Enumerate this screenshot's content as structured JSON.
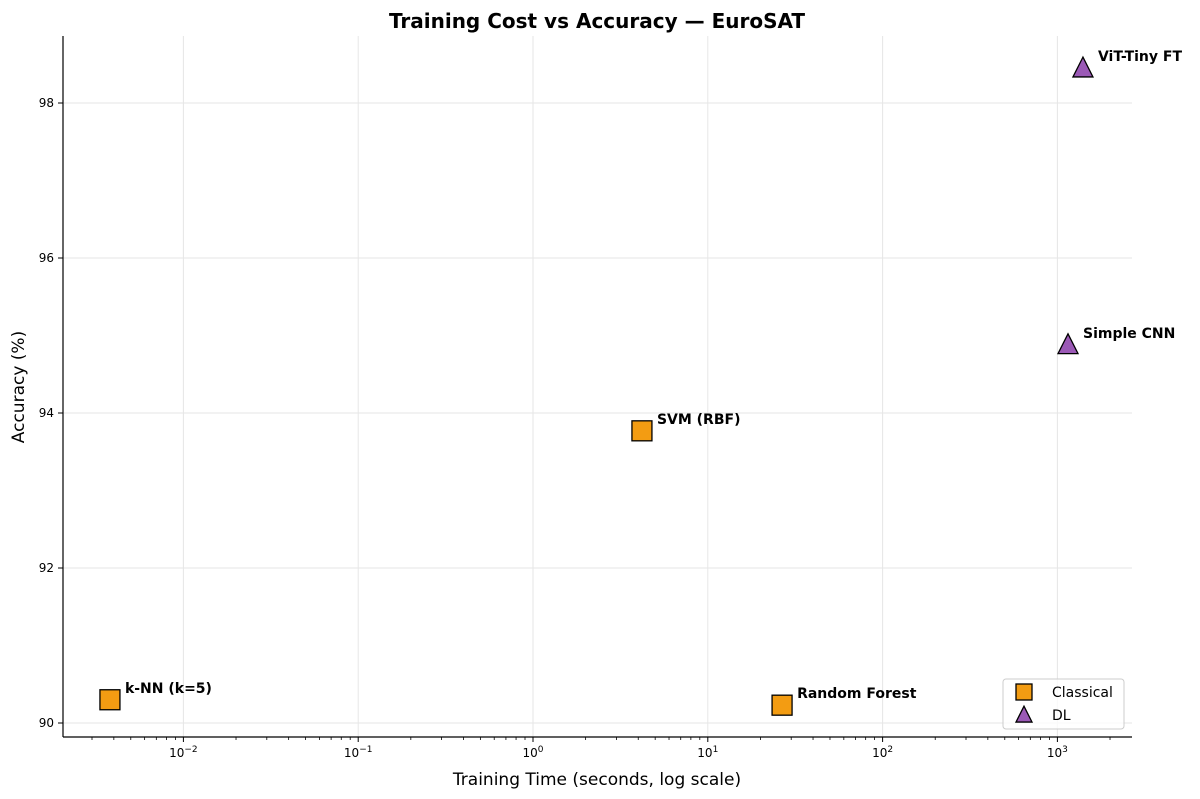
{
  "chart_data": {
    "type": "scatter",
    "title": "Training Cost vs Accuracy — EuroSAT",
    "xlabel": "Training Time (seconds, log scale)",
    "ylabel": "Accuracy (%)",
    "xscale": "log",
    "xlim": [
      0.002,
      2600
    ],
    "ylim": [
      89.8,
      98.9
    ],
    "x_ticks": [
      {
        "value": 0.01,
        "base": "10",
        "exp": "−2"
      },
      {
        "value": 0.1,
        "base": "10",
        "exp": "−1"
      },
      {
        "value": 1,
        "base": "10",
        "exp": "0"
      },
      {
        "value": 10,
        "base": "10",
        "exp": "1"
      },
      {
        "value": 100,
        "base": "10",
        "exp": "2"
      },
      {
        "value": 1000,
        "base": "10",
        "exp": "3"
      }
    ],
    "y_ticks": [
      90,
      92,
      94,
      96,
      98
    ],
    "grid": true,
    "legend_position": "lower right",
    "series": [
      {
        "name": "Classical",
        "marker": "square",
        "color": "#f39c12",
        "points": [
          {
            "label": "k-NN (k=5)",
            "x": 0.0038,
            "y": 90.3
          },
          {
            "label": "SVM (RBF)",
            "x": 4.2,
            "y": 93.77
          },
          {
            "label": "Random Forest",
            "x": 26.6,
            "y": 90.23
          }
        ]
      },
      {
        "name": "DL",
        "marker": "triangle",
        "color": "#9b59b6",
        "points": [
          {
            "label": "Simple CNN",
            "x": 1150,
            "y": 94.88
          },
          {
            "label": "ViT-Tiny FT",
            "x": 1400,
            "y": 98.45
          }
        ]
      }
    ]
  }
}
